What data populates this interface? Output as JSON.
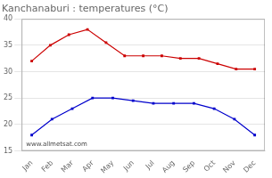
{
  "chart_data": {
    "type": "line",
    "title": "Kanchanaburi : temperatures (°C)",
    "annotation": "www.allmetsat.com",
    "xlim": [
      -0.5,
      11.5
    ],
    "xticks": [
      {
        "value": 0,
        "label": "Jan"
      },
      {
        "value": 1,
        "label": "Feb"
      },
      {
        "value": 2,
        "label": "Mar"
      },
      {
        "value": 3,
        "label": "Apr"
      },
      {
        "value": 4,
        "label": "May"
      },
      {
        "value": 5,
        "label": "Jun"
      },
      {
        "value": 6,
        "label": "Jul"
      },
      {
        "value": 7,
        "label": "Aug"
      },
      {
        "value": 8,
        "label": "Sep"
      },
      {
        "value": 9,
        "label": "Oct"
      },
      {
        "value": 10,
        "label": "Nov"
      },
      {
        "value": 11,
        "label": "Dec"
      }
    ],
    "ylim": [
      15,
      40
    ],
    "yticks": [
      15,
      20,
      25,
      30,
      35,
      40
    ],
    "grid": "y",
    "series": [
      {
        "color": "#cc0000",
        "marker": "square",
        "x": [
          0,
          0.9166666666666666,
          1.8333333333333333,
          2.75,
          3.6666666666666665,
          4.583333333333333,
          5.5,
          6.416666666666666,
          7.333333333333333,
          8.25,
          9.166666666666666,
          10.083333333333332,
          11
        ],
        "values": [
          32,
          35,
          37,
          38,
          35.5,
          33,
          33,
          33,
          32.5,
          32.5,
          31.5,
          30.5,
          30.5
        ]
      },
      {
        "color": "#0000cc",
        "marker": "square",
        "x": [
          0,
          1,
          2,
          3,
          4,
          5,
          6,
          7,
          8,
          9,
          10,
          11
        ],
        "values": [
          18,
          21,
          23,
          25,
          25,
          24.5,
          24,
          24,
          24,
          23,
          21,
          18
        ]
      }
    ]
  }
}
